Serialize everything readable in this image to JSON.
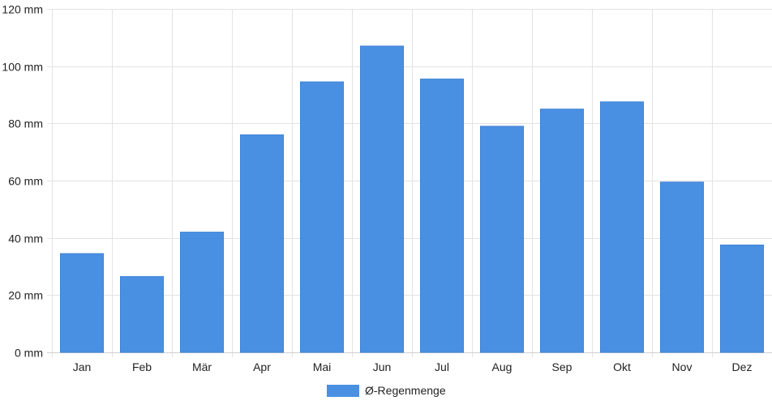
{
  "chart_data": {
    "type": "bar",
    "categories": [
      "Jan",
      "Feb",
      "Mär",
      "Apr",
      "Mai",
      "Jun",
      "Jul",
      "Aug",
      "Sep",
      "Okt",
      "Nov",
      "Dez"
    ],
    "series": [
      {
        "name": "Ø-Regenmenge",
        "color": "#4a90e2",
        "values": [
          34.5,
          26.5,
          42,
          76,
          94.5,
          107,
          95.5,
          79,
          85,
          87.5,
          59.5,
          37.5
        ]
      }
    ],
    "ylim": [
      0,
      120
    ],
    "y_ticks": [
      0,
      20,
      40,
      60,
      80,
      100,
      120
    ],
    "y_unit": "mm",
    "y_tick_labels": [
      "0 mm",
      "20 mm",
      "40 mm",
      "60 mm",
      "80 mm",
      "100 mm",
      "120 mm"
    ],
    "grid": true,
    "legend_position": "bottom-center"
  }
}
